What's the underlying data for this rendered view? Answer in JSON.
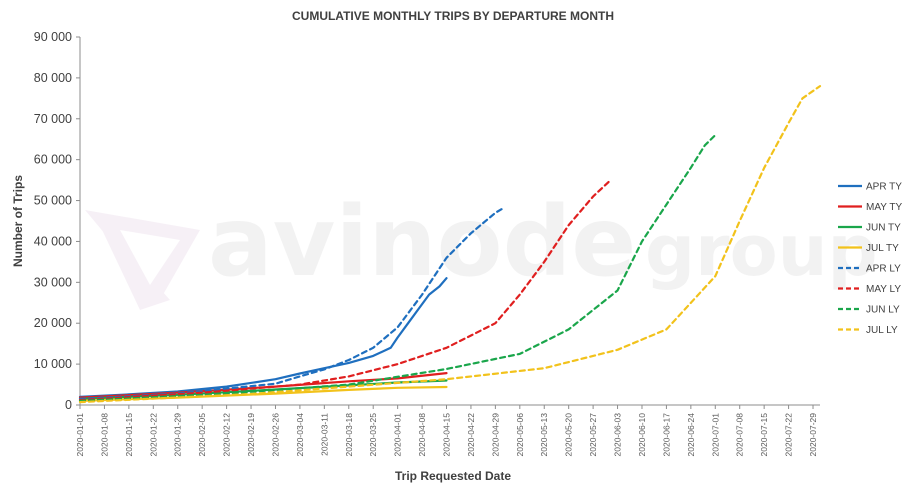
{
  "chart_data": {
    "type": "line",
    "title": "CUMULATIVE MONTHLY TRIPS BY DEPARTURE MONTH",
    "xlabel": "Trip Requested Date",
    "ylabel": "Number of Trips",
    "ylim": [
      0,
      90000
    ],
    "yticks": [
      "0",
      "10 000",
      "20 000",
      "30 000",
      "40 000",
      "50 000",
      "60 000",
      "70 000",
      "80 000",
      "90 000"
    ],
    "x_range": [
      "2020-01-01",
      "2020-07-31"
    ],
    "xticks": [
      "2020-01-01",
      "2020-01-08",
      "2020-01-15",
      "2020-01-22",
      "2020-01-29",
      "2020-02-05",
      "2020-02-12",
      "2020-02-19",
      "2020-02-26",
      "2020-03-04",
      "2020-03-11",
      "2020-03-18",
      "2020-03-25",
      "2020-04-01",
      "2020-04-08",
      "2020-04-15",
      "2020-04-22",
      "2020-04-29",
      "2020-05-06",
      "2020-05-13",
      "2020-05-20",
      "2020-05-27",
      "2020-06-03",
      "2020-06-10",
      "2020-06-17",
      "2020-06-24",
      "2020-07-01",
      "2020-07-08",
      "2020-07-15",
      "2020-07-22",
      "2020-07-29"
    ],
    "grid": false,
    "legend_position": "right",
    "series": [
      {
        "name": "APR TY",
        "color": "#1f6fbf",
        "style": "solid",
        "points": [
          [
            "2020-01-01",
            2000
          ],
          [
            "2020-01-15",
            2600
          ],
          [
            "2020-01-29",
            3300
          ],
          [
            "2020-02-12",
            4500
          ],
          [
            "2020-02-26",
            6300
          ],
          [
            "2020-03-04",
            7700
          ],
          [
            "2020-03-11",
            9000
          ],
          [
            "2020-03-18",
            10300
          ],
          [
            "2020-03-25",
            12000
          ],
          [
            "2020-03-30",
            14000
          ],
          [
            "2020-04-01",
            16500
          ],
          [
            "2020-04-04",
            20000
          ],
          [
            "2020-04-07",
            23500
          ],
          [
            "2020-04-10",
            27000
          ],
          [
            "2020-04-13",
            29000
          ],
          [
            "2020-04-15",
            31000
          ]
        ]
      },
      {
        "name": "MAY TY",
        "color": "#e01f1f",
        "style": "solid",
        "points": [
          [
            "2020-01-01",
            1800
          ],
          [
            "2020-01-29",
            3000
          ],
          [
            "2020-02-26",
            4500
          ],
          [
            "2020-03-18",
            5800
          ],
          [
            "2020-04-01",
            6500
          ],
          [
            "2020-04-15",
            7800
          ]
        ]
      },
      {
        "name": "JUN TY",
        "color": "#1aa64b",
        "style": "solid",
        "points": [
          [
            "2020-01-01",
            1500
          ],
          [
            "2020-01-29",
            2500
          ],
          [
            "2020-02-26",
            3800
          ],
          [
            "2020-03-18",
            4800
          ],
          [
            "2020-04-01",
            5500
          ],
          [
            "2020-04-15",
            6000
          ]
        ]
      },
      {
        "name": "JUL TY",
        "color": "#f2c21b",
        "style": "solid",
        "points": [
          [
            "2020-01-01",
            1000
          ],
          [
            "2020-01-29",
            1800
          ],
          [
            "2020-02-26",
            2800
          ],
          [
            "2020-03-18",
            3700
          ],
          [
            "2020-04-01",
            4200
          ],
          [
            "2020-04-15",
            4400
          ]
        ]
      },
      {
        "name": "APR LY",
        "color": "#1f6fbf",
        "style": "dashed",
        "points": [
          [
            "2020-01-01",
            1500
          ],
          [
            "2020-01-29",
            2800
          ],
          [
            "2020-02-26",
            5200
          ],
          [
            "2020-03-04",
            7000
          ],
          [
            "2020-03-11",
            8700
          ],
          [
            "2020-03-18",
            11000
          ],
          [
            "2020-03-25",
            14000
          ],
          [
            "2020-04-01",
            19000
          ],
          [
            "2020-04-08",
            27000
          ],
          [
            "2020-04-15",
            36000
          ],
          [
            "2020-04-22",
            42000
          ],
          [
            "2020-04-29",
            47000
          ],
          [
            "2020-05-01",
            48000
          ]
        ]
      },
      {
        "name": "MAY LY",
        "color": "#e01f1f",
        "style": "dashed",
        "points": [
          [
            "2020-01-01",
            1200
          ],
          [
            "2020-02-05",
            3000
          ],
          [
            "2020-03-04",
            5000
          ],
          [
            "2020-03-18",
            7000
          ],
          [
            "2020-04-01",
            10000
          ],
          [
            "2020-04-15",
            14000
          ],
          [
            "2020-04-29",
            20000
          ],
          [
            "2020-05-06",
            27000
          ],
          [
            "2020-05-13",
            35000
          ],
          [
            "2020-05-20",
            44000
          ],
          [
            "2020-05-27",
            51000
          ],
          [
            "2020-06-01",
            55000
          ]
        ]
      },
      {
        "name": "JUN LY",
        "color": "#1aa64b",
        "style": "dashed",
        "points": [
          [
            "2020-01-01",
            1000
          ],
          [
            "2020-02-12",
            2800
          ],
          [
            "2020-03-18",
            5000
          ],
          [
            "2020-04-15",
            8800
          ],
          [
            "2020-05-06",
            12500
          ],
          [
            "2020-05-20",
            18500
          ],
          [
            "2020-06-03",
            28000
          ],
          [
            "2020-06-10",
            40000
          ],
          [
            "2020-06-17",
            49000
          ],
          [
            "2020-06-24",
            58000
          ],
          [
            "2020-06-28",
            63500
          ],
          [
            "2020-07-01",
            66000
          ]
        ]
      },
      {
        "name": "JUL LY",
        "color": "#f2c21b",
        "style": "dashed",
        "points": [
          [
            "2020-01-01",
            700
          ],
          [
            "2020-02-19",
            2700
          ],
          [
            "2020-03-18",
            4500
          ],
          [
            "2020-04-15",
            6300
          ],
          [
            "2020-05-13",
            9000
          ],
          [
            "2020-06-03",
            13500
          ],
          [
            "2020-06-17",
            18500
          ],
          [
            "2020-07-01",
            31500
          ],
          [
            "2020-07-08",
            45000
          ],
          [
            "2020-07-15",
            58000
          ],
          [
            "2020-07-22",
            69000
          ],
          [
            "2020-07-26",
            75000
          ],
          [
            "2020-07-31",
            78000
          ]
        ]
      }
    ]
  },
  "watermark": {
    "brand": "avinode",
    "suffix": "group"
  }
}
